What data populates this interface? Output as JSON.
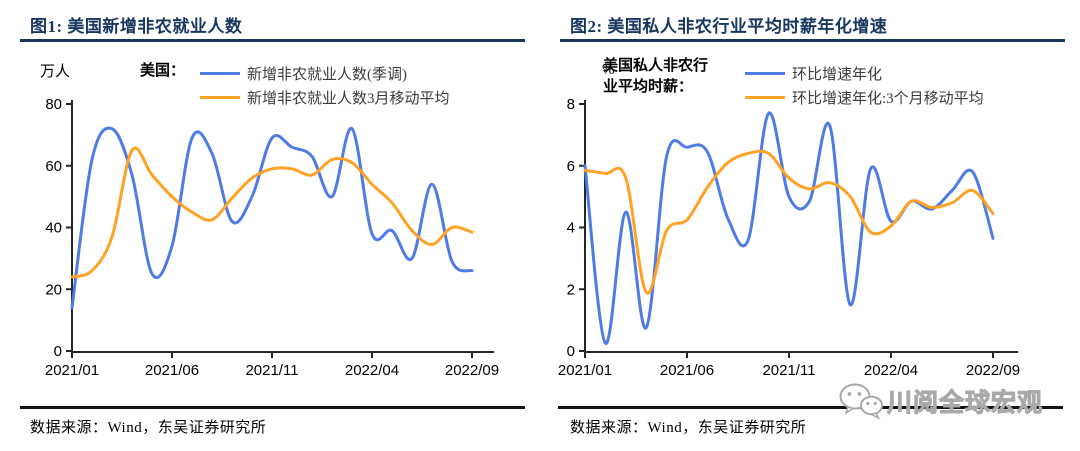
{
  "watermark": {
    "icon": "wechat-icon",
    "text": "川阅全球宏观"
  },
  "colors": {
    "title_navy": "#17375E",
    "axis": "#262626",
    "series_blue": "#4F7BE5",
    "series_orange": "#FFA226",
    "watermark_gray": "#a9a9a9"
  },
  "chart_data": [
    {
      "type": "line",
      "title": "图1:  美国新增非农就业人数",
      "y_unit": "万人",
      "legend_title": "美国：",
      "source": "数据来源：Wind，东吴证券研究所",
      "categories": [
        "2021/01",
        "2021/02",
        "2021/03",
        "2021/04",
        "2021/05",
        "2021/06",
        "2021/07",
        "2021/08",
        "2021/09",
        "2021/10",
        "2021/11",
        "2021/12",
        "2022/01",
        "2022/02",
        "2022/03",
        "2022/04",
        "2022/05",
        "2022/06",
        "2022/07",
        "2022/08",
        "2022/09"
      ],
      "x_tick_labels": [
        "2021/01",
        "2021/06",
        "2021/11",
        "2022/04",
        "2022/09"
      ],
      "y_ticks": [
        0,
        20,
        40,
        60,
        80
      ],
      "ylim": [
        0,
        80
      ],
      "grid": false,
      "legend_position": "top",
      "series": [
        {
          "name": "新增非农就业人数(季调)",
          "color": "#4F7BE5",
          "values": [
            14,
            62,
            72,
            57,
            25,
            34,
            69,
            64,
            42,
            50,
            69,
            66,
            63,
            50,
            72,
            38,
            39,
            30,
            54,
            29,
            26
          ]
        },
        {
          "name": "新增非农就业人数3月移动平均",
          "color": "#FFA226",
          "values": [
            24,
            26,
            37,
            65,
            57,
            50,
            45,
            42.5,
            49.5,
            56,
            59,
            59,
            57,
            62,
            61,
            54,
            48,
            39,
            34.5,
            40,
            38.5
          ]
        }
      ]
    },
    {
      "type": "line",
      "title": "图2:  美国私人非农行业平均时薪年化增速",
      "y_unit": "%",
      "legend_title": "美国私人非农行业平均时薪：",
      "source": "数据来源：Wind，东吴证券研究所",
      "categories": [
        "2021/01",
        "2021/02",
        "2021/03",
        "2021/04",
        "2021/05",
        "2021/06",
        "2021/07",
        "2021/08",
        "2021/09",
        "2021/10",
        "2021/11",
        "2021/12",
        "2022/01",
        "2022/02",
        "2022/03",
        "2022/04",
        "2022/05",
        "2022/06",
        "2022/07",
        "2022/08",
        "2022/09"
      ],
      "x_tick_labels": [
        "2021/01",
        "2021/06",
        "2021/11",
        "2022/04",
        "2022/09"
      ],
      "y_ticks": [
        0,
        2,
        4,
        6,
        8
      ],
      "ylim": [
        0,
        8
      ],
      "grid": false,
      "legend_position": "top",
      "series": [
        {
          "name": "环比增速年化",
          "color": "#4F7BE5",
          "values": [
            6.0,
            0.25,
            4.5,
            0.75,
            6.3,
            6.6,
            6.45,
            4.3,
            3.6,
            7.7,
            5.0,
            4.85,
            7.3,
            1.5,
            5.9,
            4.2,
            4.85,
            4.6,
            5.2,
            5.8,
            3.65
          ]
        },
        {
          "name": "环比增速年化:3个月移动平均",
          "color": "#FFA226",
          "values": [
            5.85,
            5.75,
            5.6,
            1.9,
            3.9,
            4.25,
            5.3,
            6.1,
            6.4,
            6.4,
            5.6,
            5.25,
            5.45,
            5.0,
            3.85,
            4.05,
            4.85,
            4.65,
            4.8,
            5.2,
            4.45
          ]
        }
      ]
    }
  ]
}
